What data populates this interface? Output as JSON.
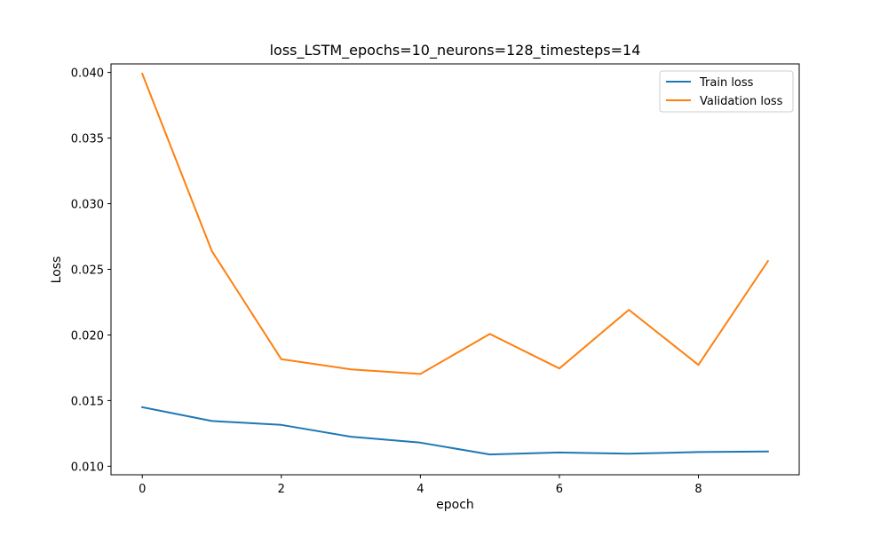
{
  "chart_data": {
    "type": "line",
    "title": "loss_LSTM_epochs=10_neurons=128_timesteps=14",
    "xlabel": "epoch",
    "ylabel": "Loss",
    "x": [
      0,
      1,
      2,
      3,
      4,
      5,
      6,
      7,
      8,
      9
    ],
    "xlim": [
      -0.45,
      9.45
    ],
    "ylim": [
      0.00935,
      0.04065
    ],
    "xticks": [
      0,
      2,
      4,
      6,
      8
    ],
    "xtick_labels": [
      "0",
      "2",
      "4",
      "6",
      "8"
    ],
    "yticks": [
      0.01,
      0.015,
      0.02,
      0.025,
      0.03,
      0.035,
      0.04
    ],
    "ytick_labels": [
      "0.010",
      "0.015",
      "0.020",
      "0.025",
      "0.030",
      "0.035",
      "0.040"
    ],
    "grid": false,
    "legend_position": "top-right",
    "series": [
      {
        "name": "Train loss",
        "color": "#1f77b4",
        "values": [
          0.0145,
          0.01345,
          0.01315,
          0.01225,
          0.0118,
          0.0109,
          0.01105,
          0.01095,
          0.01108,
          0.01113
        ]
      },
      {
        "name": "Validation loss",
        "color": "#ff7f0e",
        "values": [
          0.0399,
          0.0264,
          0.01815,
          0.01738,
          0.01703,
          0.02008,
          0.01745,
          0.02192,
          0.01772,
          0.02563
        ]
      }
    ]
  }
}
